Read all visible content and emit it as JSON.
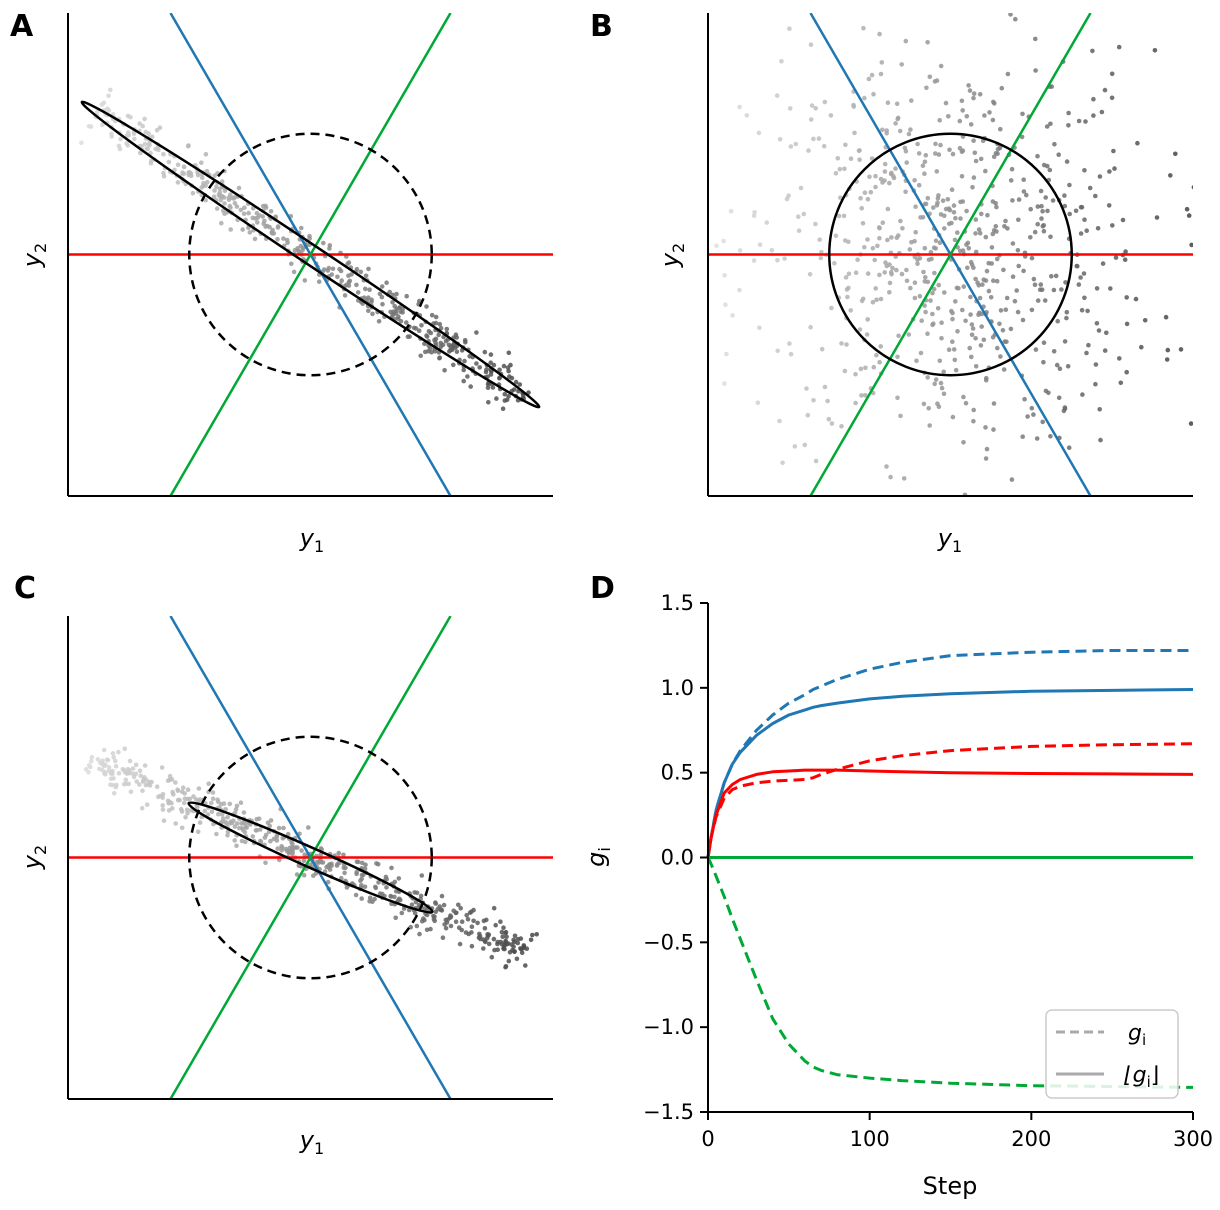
{
  "colors": {
    "blue": "#1f77b4",
    "red": "#ff0000",
    "green": "#00a835",
    "black": "#000000",
    "legend_gray": "#aaaaaa"
  },
  "panels": {
    "A": {
      "letter": "A",
      "xlabel": "y",
      "xlabel_sub": "1",
      "ylabel": "y",
      "ylabel_sub": "2"
    },
    "B": {
      "letter": "B",
      "xlabel": "y",
      "xlabel_sub": "1",
      "ylabel": "y",
      "ylabel_sub": "2"
    },
    "C": {
      "letter": "C",
      "xlabel": "y",
      "xlabel_sub": "1",
      "ylabel": "y",
      "ylabel_sub": "2"
    },
    "D": {
      "letter": "D"
    }
  },
  "chart_data": [
    {
      "panel": "A",
      "type": "scatter",
      "title": "",
      "xlabel": "y1",
      "ylabel": "y2",
      "xlim": [
        -3,
        3
      ],
      "ylim": [
        -3,
        3
      ],
      "lines": [
        {
          "name": "red",
          "slope": 0
        },
        {
          "name": "blue",
          "slope": -1.732
        },
        {
          "name": "green",
          "slope": 1.732
        }
      ],
      "reference_circle": {
        "radius": 1.5,
        "style": "dashed"
      },
      "data_ellipse": {
        "semi_major": 3.4,
        "semi_minor": 0.12,
        "angle_deg": -33.7,
        "style": "solid"
      },
      "cloud": {
        "n": 500,
        "center": [
          0,
          0
        ],
        "axis_angle_deg": -33.7,
        "spread_major": 3.2,
        "spread_minor": 0.12
      }
    },
    {
      "panel": "B",
      "type": "scatter",
      "title": "",
      "xlabel": "y1",
      "ylabel": "y2",
      "xlim": [
        -3,
        3
      ],
      "ylim": [
        -3,
        3
      ],
      "lines": [
        {
          "name": "red",
          "slope": 0
        },
        {
          "name": "blue",
          "slope": -1.732
        },
        {
          "name": "green",
          "slope": 1.732
        }
      ],
      "data_circle": {
        "radius": 1.5,
        "style": "solid"
      },
      "cloud": {
        "n": 700,
        "center": [
          0,
          0
        ],
        "std": 1.25
      }
    },
    {
      "panel": "C",
      "type": "scatter",
      "title": "",
      "xlabel": "y1",
      "ylabel": "y2",
      "xlim": [
        -3,
        3
      ],
      "ylim": [
        -3,
        3
      ],
      "lines": [
        {
          "name": "red",
          "slope": 0
        },
        {
          "name": "blue",
          "slope": -1.732
        },
        {
          "name": "green",
          "slope": 1.732
        }
      ],
      "reference_circle": {
        "radius": 1.5,
        "style": "dashed"
      },
      "data_ellipse": {
        "semi_major": 1.65,
        "semi_minor": 0.12,
        "angle_deg": -24,
        "style": "solid"
      },
      "cloud": {
        "n": 550,
        "center": [
          0,
          0
        ],
        "axis_angle_deg": -24,
        "spread_major": 3.0,
        "spread_minor": 0.12
      }
    },
    {
      "panel": "D",
      "type": "line",
      "title": "",
      "xlabel": "Step",
      "ylabel": "g_i",
      "xlim": [
        0,
        300
      ],
      "ylim": [
        -1.5,
        1.5
      ],
      "xticks": [
        0,
        100,
        200,
        300
      ],
      "xtick_labels": [
        "0",
        "100",
        "200",
        "300"
      ],
      "yticks": [
        1.5,
        1.0,
        0.5,
        0.0,
        -0.5,
        -1.0,
        -1.5
      ],
      "ytick_labels": [
        "1.5",
        "1.0",
        "0.5",
        "0.0",
        "−0.5",
        "−1.0",
        "−1.5"
      ],
      "x": [
        0,
        2,
        5,
        10,
        15,
        20,
        30,
        40,
        50,
        60,
        65,
        70,
        80,
        100,
        120,
        150,
        200,
        250,
        300
      ],
      "series": [
        {
          "name": "blue g_i",
          "color": "blue",
          "dash": true,
          "values": [
            0,
            0.12,
            0.28,
            0.44,
            0.55,
            0.63,
            0.75,
            0.84,
            0.91,
            0.96,
            0.99,
            1.01,
            1.05,
            1.11,
            1.15,
            1.19,
            1.21,
            1.22,
            1.22
          ]
        },
        {
          "name": "blue |g_i|",
          "color": "blue",
          "dash": false,
          "values": [
            0,
            0.12,
            0.28,
            0.44,
            0.55,
            0.62,
            0.72,
            0.79,
            0.84,
            0.87,
            0.885,
            0.895,
            0.91,
            0.935,
            0.95,
            0.965,
            0.98,
            0.985,
            0.99
          ]
        },
        {
          "name": "red g_i",
          "color": "red",
          "dash": true,
          "values": [
            0,
            0.12,
            0.24,
            0.35,
            0.4,
            0.42,
            0.44,
            0.45,
            0.455,
            0.46,
            0.47,
            0.49,
            0.52,
            0.57,
            0.6,
            0.63,
            0.655,
            0.665,
            0.67
          ]
        },
        {
          "name": "red |g_i|",
          "color": "red",
          "dash": false,
          "values": [
            0,
            0.12,
            0.25,
            0.38,
            0.43,
            0.46,
            0.49,
            0.505,
            0.51,
            0.515,
            0.515,
            0.515,
            0.515,
            0.51,
            0.505,
            0.5,
            0.495,
            0.493,
            0.49
          ]
        },
        {
          "name": "green g_i",
          "color": "green",
          "dash": true,
          "values": [
            0,
            -0.04,
            -0.11,
            -0.23,
            -0.36,
            -0.48,
            -0.72,
            -0.95,
            -1.1,
            -1.2,
            -1.235,
            -1.255,
            -1.28,
            -1.3,
            -1.315,
            -1.33,
            -1.345,
            -1.35,
            -1.355
          ]
        },
        {
          "name": "green |g_i|",
          "color": "green",
          "dash": false,
          "values": [
            0,
            0,
            0,
            0,
            0,
            0,
            0,
            0,
            0,
            0,
            0,
            0,
            0,
            0,
            0,
            0,
            0,
            0,
            0
          ]
        }
      ],
      "legend": {
        "placement": "bottom-right",
        "entries": [
          {
            "label": "g",
            "sub": "i",
            "style": "dashed"
          },
          {
            "label": "⌊g",
            "sub": "i",
            "suffix": "⌋",
            "style": "solid"
          }
        ]
      }
    }
  ]
}
